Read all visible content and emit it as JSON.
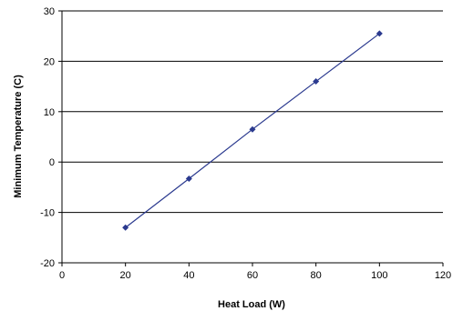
{
  "chart_data": {
    "type": "scatter",
    "title": "",
    "xlabel": "Heat Load (W)",
    "ylabel": "Minimum Temperature (C)",
    "xlim": [
      0,
      120
    ],
    "ylim": [
      -20,
      30
    ],
    "xticks": [
      0,
      20,
      40,
      60,
      80,
      100,
      120
    ],
    "yticks": [
      -20,
      -10,
      0,
      10,
      20,
      30
    ],
    "grid": "horizontal",
    "legend": "none",
    "series": [
      {
        "x": [
          20,
          40,
          60,
          80,
          100
        ],
        "y": [
          -13,
          -3.3,
          6.5,
          16,
          25.5
        ],
        "color": "#2b3a8f",
        "markers": "diamond",
        "trendline": true
      }
    ]
  }
}
